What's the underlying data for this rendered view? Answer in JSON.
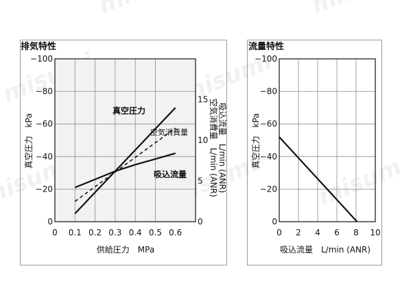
{
  "watermark": "misumi",
  "chart_data": [
    {
      "type": "line",
      "title": "排気特性",
      "xlabel": "供給圧力　MPa",
      "ylabel": "真空圧力　kPa",
      "y2label_lines": [
        "吸込流量　L/min (ANR)",
        "空気消費量　L/min (ANR)"
      ],
      "x_ticks": [
        "0",
        "0.1",
        "0.2",
        "0.3",
        "0.4",
        "0.5",
        "0.6"
      ],
      "y_ticks": [
        "0",
        "−20",
        "−40",
        "−60",
        "−80",
        "−100"
      ],
      "y2_ticks": [
        "0",
        "5",
        "10",
        "15"
      ],
      "xlim": [
        0,
        0.7
      ],
      "ylim": [
        0,
        -100
      ],
      "y2lim": [
        0,
        20
      ],
      "grid": true,
      "series": [
        {
          "name": "真空圧力",
          "axis": "left",
          "style": "solid",
          "x": [
            0.1,
            0.6
          ],
          "y": [
            -5,
            -70
          ]
        },
        {
          "name": "空気消費量",
          "axis": "right",
          "style": "dashed",
          "x": [
            0.1,
            0.6
          ],
          "y": [
            2.5,
            11.5
          ]
        },
        {
          "name": "吸込流量",
          "axis": "right",
          "style": "solid",
          "x": [
            0.1,
            0.2,
            0.3,
            0.4,
            0.5,
            0.6
          ],
          "y": [
            4.2,
            5.2,
            6.2,
            7.0,
            7.7,
            8.4
          ]
        }
      ]
    },
    {
      "type": "line",
      "title": "流量特性",
      "xlabel": "吸込流量　L/min (ANR)",
      "ylabel": "真空圧力　kPa",
      "x_ticks": [
        "0",
        "2",
        "4",
        "6",
        "8",
        "10"
      ],
      "y_ticks": [
        "0",
        "−20",
        "−40",
        "−60",
        "−80",
        "−100"
      ],
      "xlim": [
        0,
        10
      ],
      "ylim": [
        0,
        -100
      ],
      "grid": true,
      "series": [
        {
          "name": "",
          "style": "solid",
          "x": [
            0,
            8.1
          ],
          "y": [
            -52,
            0
          ]
        }
      ]
    }
  ]
}
